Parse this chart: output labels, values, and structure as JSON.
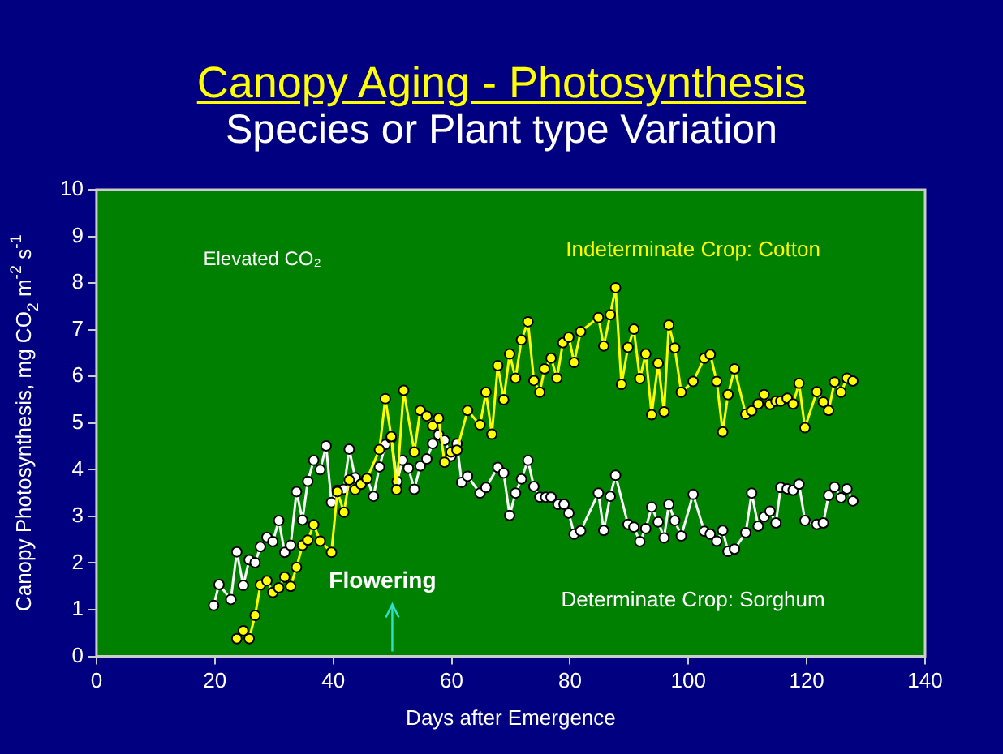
{
  "chart_data": {
    "type": "line",
    "title": "Canopy Aging - Photosynthesis",
    "subtitle": "Species or Plant type Variation",
    "xlabel": "Days after Emergence",
    "ylabel": "Canopy Photosynthesis, mg CO$_{2}$ m$^{-2}$ s$^{-1}$",
    "xlim": [
      0,
      140
    ],
    "xticks": [
      0,
      20,
      40,
      60,
      80,
      100,
      120,
      140
    ],
    "ylim": [
      0,
      10
    ],
    "yticks": [
      0,
      1,
      2,
      3,
      4,
      5,
      6,
      7,
      8,
      9,
      10
    ],
    "grid": false,
    "legend": false,
    "marker": "circle",
    "line_style": "solid",
    "annotations": [
      "Elevated CO₂",
      "Flowering"
    ],
    "series": [
      {
        "name": "Indeterminate Crop: Cotton",
        "color": "#ffff00",
        "x": [
          23.7,
          24.8,
          25.8,
          26.8,
          27.7,
          28.8,
          29.8,
          30.8,
          31.8,
          32.8,
          33.8,
          34.8,
          35.7,
          36.7,
          37.8,
          39.7,
          40.7,
          41.8,
          42.7,
          43.7,
          44.7,
          45.7,
          47.8,
          48.8,
          49.8,
          50.7,
          51.9,
          53.7,
          54.7,
          55.8,
          56.8,
          57.8,
          58.8,
          59.9,
          60.9,
          62.7,
          64.8,
          65.8,
          66.8,
          67.8,
          68.8,
          69.8,
          70.8,
          71.8,
          72.9,
          73.9,
          74.9,
          75.7,
          76.8,
          77.8,
          78.8,
          79.8,
          80.7,
          81.8,
          84.8,
          85.7,
          86.8,
          87.7,
          88.7,
          89.8,
          90.8,
          91.8,
          92.8,
          93.8,
          94.9,
          95.9,
          96.7,
          97.7,
          98.8,
          100.8,
          102.7,
          103.7,
          104.8,
          105.8,
          106.7,
          107.8,
          109.7,
          110.7,
          111.8,
          112.8,
          113.8,
          114.8,
          115.6,
          116.7,
          117.7,
          118.7,
          119.7,
          121.7,
          122.8,
          123.7,
          124.7,
          125.8,
          126.8,
          127.8
        ],
        "values": [
          0.38,
          0.55,
          0.38,
          0.88,
          1.53,
          1.62,
          1.37,
          1.47,
          1.7,
          1.5,
          1.91,
          2.38,
          2.49,
          2.82,
          2.47,
          2.23,
          3.53,
          3.09,
          3.78,
          3.57,
          3.69,
          3.81,
          4.43,
          5.52,
          4.71,
          3.57,
          5.7,
          4.38,
          5.27,
          5.15,
          4.94,
          5.1,
          4.16,
          4.38,
          4.42,
          5.27,
          4.96,
          5.66,
          4.76,
          6.23,
          5.5,
          6.48,
          5.96,
          6.78,
          7.17,
          5.91,
          5.66,
          6.16,
          6.39,
          5.96,
          6.72,
          6.84,
          6.3,
          6.96,
          7.26,
          6.65,
          7.32,
          7.9,
          5.83,
          6.62,
          7.01,
          5.95,
          6.48,
          5.18,
          6.28,
          5.24,
          7.1,
          6.61,
          5.66,
          5.89,
          6.39,
          6.47,
          5.89,
          4.81,
          5.61,
          6.16,
          5.19,
          5.26,
          5.41,
          5.61,
          5.4,
          5.47,
          5.47,
          5.53,
          5.41,
          5.85,
          4.9,
          5.67,
          5.45,
          5.27,
          5.88,
          5.66,
          5.96,
          5.9
        ]
      },
      {
        "name": "Determinate Crop: Sorghum",
        "color": "#ffffff",
        "x": [
          19.8,
          20.7,
          22.7,
          23.7,
          24.8,
          25.8,
          26.8,
          27.7,
          28.8,
          29.8,
          30.8,
          31.8,
          32.8,
          33.8,
          34.8,
          35.7,
          36.7,
          37.8,
          38.8,
          39.7,
          40.7,
          41.8,
          42.7,
          43.7,
          44.7,
          45.7,
          46.8,
          47.8,
          48.8,
          49.8,
          50.8,
          51.7,
          52.7,
          53.7,
          54.7,
          55.8,
          56.8,
          57.8,
          58.8,
          59.9,
          60.9,
          61.7,
          62.7,
          64.8,
          65.8,
          67.8,
          68.8,
          69.8,
          70.8,
          71.8,
          72.9,
          73.9,
          74.9,
          75.9,
          76.8,
          78,
          79,
          79.8,
          80.7,
          81.8,
          84.8,
          85.7,
          86.8,
          87.7,
          89.8,
          90.8,
          91.8,
          92.8,
          93.8,
          94.9,
          95.9,
          96.7,
          97.7,
          98.8,
          100.8,
          102.7,
          103.7,
          104.8,
          105.8,
          106.7,
          107.8,
          109.7,
          110.7,
          111.8,
          112.8,
          113.8,
          114.8,
          115.6,
          116.7,
          117.7,
          118.7,
          119.7,
          121.7,
          122.8,
          123.7,
          124.7,
          125.8,
          126.8,
          127.8
        ],
        "values": [
          1.09,
          1.54,
          1.22,
          2.24,
          1.52,
          2.07,
          2.01,
          2.35,
          2.55,
          2.46,
          2.91,
          2.23,
          2.38,
          3.53,
          2.92,
          3.75,
          4.2,
          4.0,
          4.51,
          3.3,
          3.56,
          3.58,
          4.44,
          3.83,
          3.69,
          3.81,
          3.43,
          4.06,
          4.54,
          4.68,
          3.75,
          4.2,
          4.03,
          3.58,
          4.08,
          4.23,
          4.56,
          4.75,
          4.63,
          4.29,
          4.56,
          3.73,
          3.86,
          3.5,
          3.62,
          4.05,
          3.93,
          3.02,
          3.5,
          3.8,
          4.2,
          3.64,
          3.41,
          3.41,
          3.41,
          3.26,
          3.26,
          3.07,
          2.62,
          2.69,
          3.5,
          2.7,
          3.43,
          3.88,
          2.83,
          2.77,
          2.46,
          2.74,
          3.2,
          2.88,
          2.54,
          3.26,
          2.91,
          2.58,
          3.47,
          2.68,
          2.62,
          2.47,
          2.7,
          2.25,
          2.3,
          2.65,
          3.5,
          2.79,
          2.99,
          3.11,
          2.86,
          3.62,
          3.59,
          3.56,
          3.69,
          2.91,
          2.83,
          2.86,
          3.45,
          3.63,
          3.4,
          3.59,
          3.33
        ]
      }
    ]
  }
}
